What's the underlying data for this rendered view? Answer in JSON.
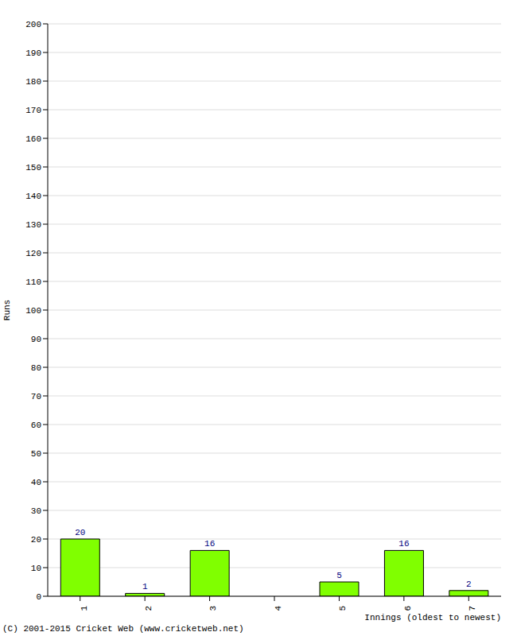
{
  "chart_data": {
    "type": "bar",
    "categories": [
      "1",
      "2",
      "3",
      "4",
      "5",
      "6",
      "7"
    ],
    "values": [
      20,
      1,
      16,
      0,
      5,
      16,
      2
    ],
    "color": "#80ff00",
    "xlabel": "Innings (oldest to newest)",
    "ylabel": "Runs",
    "ylim": [
      0,
      200
    ],
    "yticks": [
      0,
      10,
      20,
      30,
      40,
      50,
      60,
      70,
      80,
      90,
      100,
      110,
      120,
      130,
      140,
      150,
      160,
      170,
      180,
      190,
      200
    ],
    "grid": true,
    "data_labels": true,
    "annotation": "(C) 2001-2015 Cricket Web (www.cricketweb.net)"
  }
}
